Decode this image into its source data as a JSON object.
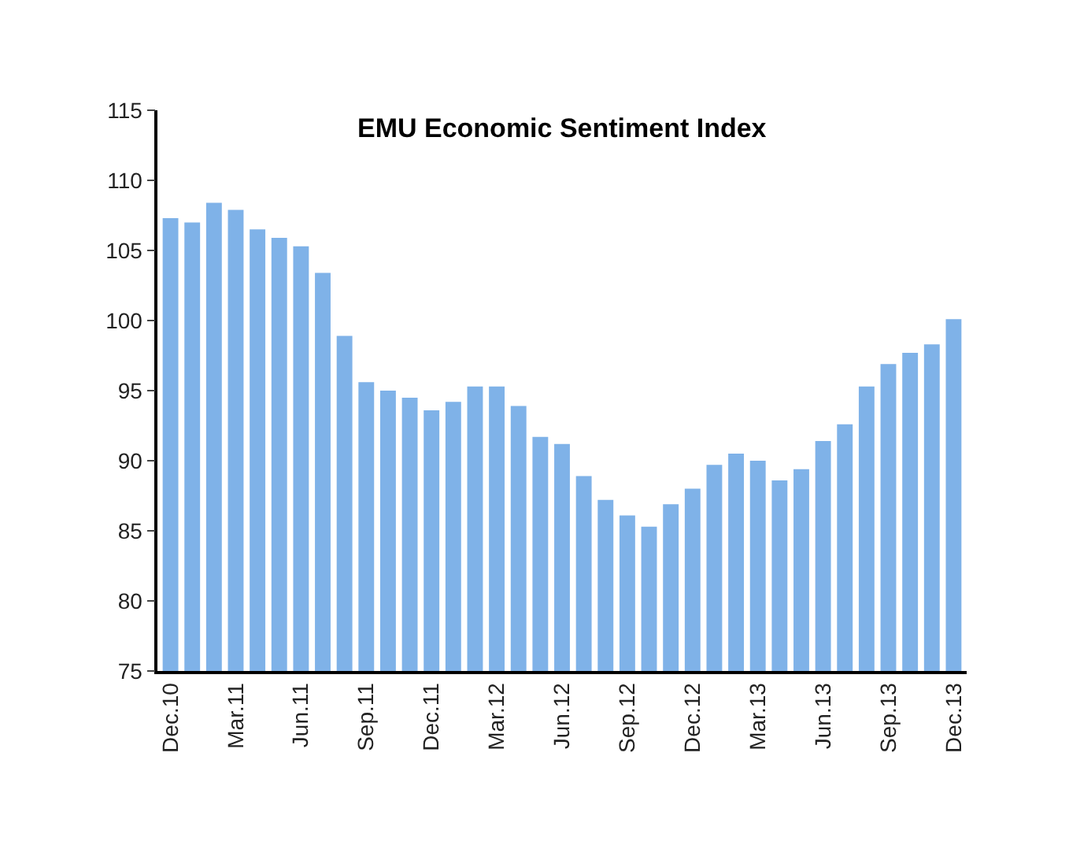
{
  "chart_data": {
    "type": "bar",
    "title": "EMU Economic Sentiment Index",
    "categories": [
      "Dec.10",
      null,
      null,
      "Mar.11",
      null,
      null,
      "Jun.11",
      null,
      null,
      "Sep.11",
      null,
      null,
      "Dec.11",
      null,
      null,
      "Mar.12",
      null,
      null,
      "Jun.12",
      null,
      null,
      "Sep.12",
      null,
      null,
      "Dec.12",
      null,
      null,
      "Mar.13",
      null,
      null,
      "Jun.13",
      null,
      null,
      "Sep.13",
      null,
      null,
      "Dec.13"
    ],
    "values": [
      107.3,
      107.0,
      108.4,
      107.9,
      106.5,
      105.9,
      105.3,
      103.4,
      98.9,
      95.6,
      95.0,
      94.5,
      93.6,
      94.2,
      95.3,
      95.3,
      93.9,
      91.7,
      91.2,
      88.9,
      87.2,
      86.1,
      85.3,
      86.9,
      88.0,
      89.7,
      90.5,
      90.0,
      88.6,
      89.4,
      91.4,
      92.6,
      95.3,
      96.9,
      97.7,
      98.3,
      100.1
    ],
    "color": "#7fb2e8",
    "ylim": [
      75,
      115
    ],
    "yticks": [
      75,
      80,
      85,
      90,
      95,
      100,
      105,
      110,
      115
    ]
  }
}
